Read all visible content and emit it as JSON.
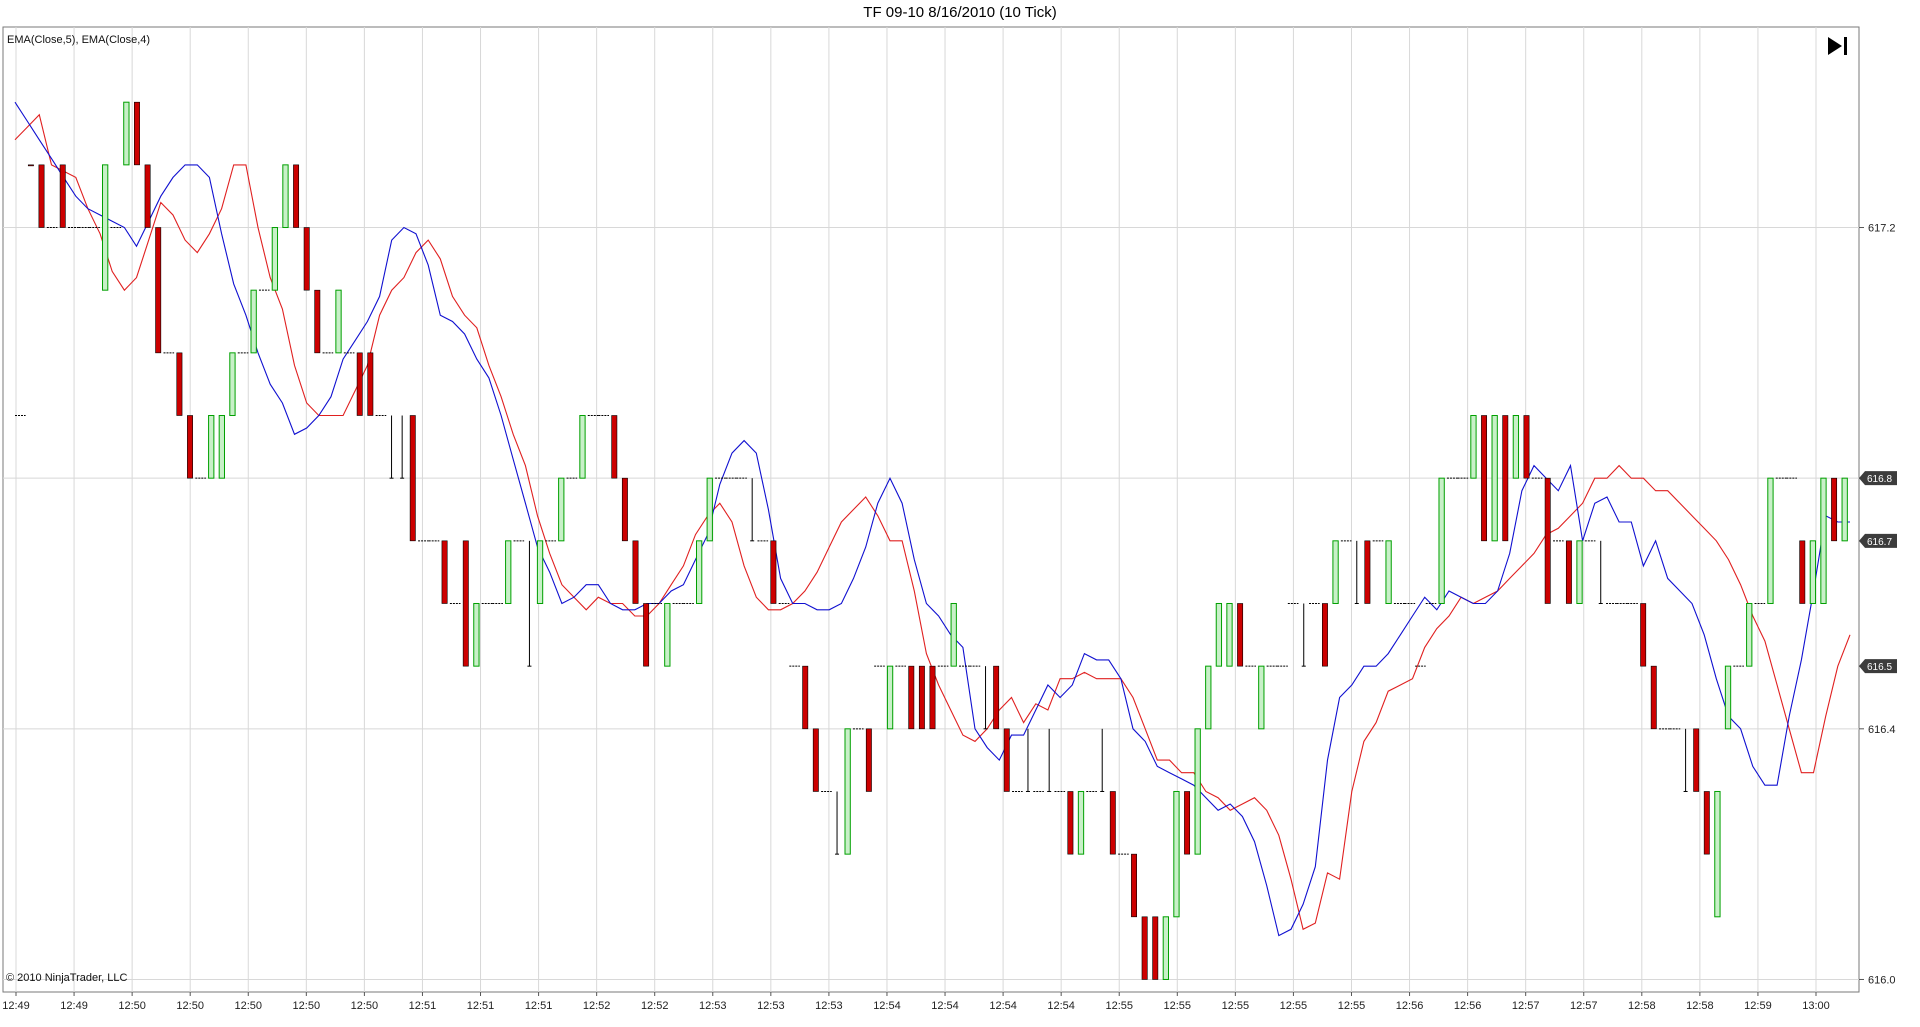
{
  "chart_title": "TF 09-10  8/16/2010 (10 Tick)",
  "indicator_label": "EMA(Close,5), EMA(Close,4)",
  "copyright": "© 2010 NinjaTrader, LLC",
  "colors": {
    "up_bar": "#00a000",
    "up_fill": "#c8f0c8",
    "down_bar": "#cc0000",
    "ema_red": "#e02020",
    "ema_blue": "#1010d0",
    "badge": "#3c3c3c",
    "grid": "#d8d8d8"
  },
  "icons": {
    "jump": "skip-to-end-icon"
  },
  "chart_data": {
    "type": "candlestick",
    "x_labels": [
      "12:49",
      "12:49",
      "12:50",
      "12:50",
      "12:50",
      "12:50",
      "12:50",
      "12:51",
      "12:51",
      "12:51",
      "12:52",
      "12:52",
      "12:53",
      "12:53",
      "12:53",
      "12:54",
      "12:54",
      "12:54",
      "12:54",
      "12:55",
      "12:55",
      "12:55",
      "12:55",
      "12:55",
      "12:56",
      "12:56",
      "12:57",
      "12:57",
      "12:58",
      "12:58",
      "12:59",
      "13:00"
    ],
    "y_ticks": [
      616.0,
      616.4,
      617.2
    ],
    "ylim": [
      615.98,
      617.52
    ],
    "price_badges": [
      616.8,
      616.7,
      616.5
    ],
    "bars": [
      {
        "t": "h",
        "o": 616.9,
        "c": 616.9
      },
      {
        "t": "d",
        "o": 617.3,
        "c": 617.3
      },
      {
        "t": "d",
        "o": 617.3,
        "c": 617.2
      },
      {
        "t": "h",
        "o": 617.2,
        "c": 617.2
      },
      {
        "t": "d",
        "o": 617.3,
        "c": 617.2
      },
      {
        "t": "h",
        "o": 617.2,
        "c": 617.2
      },
      {
        "t": "h",
        "o": 617.2,
        "c": 617.2
      },
      {
        "t": "h",
        "o": 617.2,
        "c": 617.2
      },
      {
        "t": "u",
        "o": 617.1,
        "c": 617.3
      },
      {
        "t": "h",
        "o": 617.2,
        "c": 617.2
      },
      {
        "t": "u",
        "o": 617.3,
        "c": 617.4
      },
      {
        "t": "d",
        "o": 617.4,
        "c": 617.3
      },
      {
        "t": "d",
        "o": 617.3,
        "c": 617.2
      },
      {
        "t": "d",
        "o": 617.2,
        "c": 617.0
      },
      {
        "t": "h",
        "o": 617.0,
        "c": 617.0
      },
      {
        "t": "d",
        "o": 617.0,
        "c": 616.9
      },
      {
        "t": "d",
        "o": 616.9,
        "c": 616.8
      },
      {
        "t": "h",
        "o": 616.8,
        "c": 616.8
      },
      {
        "t": "u",
        "o": 616.8,
        "c": 616.9
      },
      {
        "t": "u",
        "o": 616.8,
        "c": 616.9
      },
      {
        "t": "u",
        "o": 616.9,
        "c": 617.0
      },
      {
        "t": "h",
        "o": 617.0,
        "c": 617.0
      },
      {
        "t": "u",
        "o": 617.0,
        "c": 617.1
      },
      {
        "t": "h",
        "o": 617.1,
        "c": 617.1
      },
      {
        "t": "u",
        "o": 617.1,
        "c": 617.2
      },
      {
        "t": "u",
        "o": 617.2,
        "c": 617.3
      },
      {
        "t": "d",
        "o": 617.3,
        "c": 617.2
      },
      {
        "t": "d",
        "o": 617.2,
        "c": 617.1
      },
      {
        "t": "d",
        "o": 617.1,
        "c": 617.0
      },
      {
        "t": "h",
        "o": 617.0,
        "c": 617.0
      },
      {
        "t": "u",
        "o": 617.0,
        "c": 617.1
      },
      {
        "t": "h",
        "o": 617.0,
        "c": 617.0
      },
      {
        "t": "d",
        "o": 617.0,
        "c": 616.9
      },
      {
        "t": "d",
        "o": 617.0,
        "c": 616.9
      },
      {
        "t": "h",
        "o": 616.9,
        "c": 616.9
      },
      {
        "t": "h",
        "o": 616.9,
        "c": 616.8
      },
      {
        "t": "h",
        "o": 616.9,
        "c": 616.8
      },
      {
        "t": "d",
        "o": 616.9,
        "c": 616.7
      },
      {
        "t": "h",
        "o": 616.7,
        "c": 616.7
      },
      {
        "t": "h",
        "o": 616.7,
        "c": 616.7
      },
      {
        "t": "d",
        "o": 616.7,
        "c": 616.6
      },
      {
        "t": "h",
        "o": 616.6,
        "c": 616.6
      },
      {
        "t": "d",
        "o": 616.7,
        "c": 616.5
      },
      {
        "t": "u",
        "o": 616.5,
        "c": 616.6
      },
      {
        "t": "h",
        "o": 616.6,
        "c": 616.6
      },
      {
        "t": "h",
        "o": 616.6,
        "c": 616.6
      },
      {
        "t": "u",
        "o": 616.6,
        "c": 616.7
      },
      {
        "t": "h",
        "o": 616.7,
        "c": 616.7
      },
      {
        "t": "h",
        "o": 616.7,
        "c": 616.5
      },
      {
        "t": "u",
        "o": 616.6,
        "c": 616.7
      },
      {
        "t": "h",
        "o": 616.7,
        "c": 616.7
      },
      {
        "t": "u",
        "o": 616.7,
        "c": 616.8
      },
      {
        "t": "h",
        "o": 616.8,
        "c": 616.8
      },
      {
        "t": "u",
        "o": 616.8,
        "c": 616.9
      },
      {
        "t": "h",
        "o": 616.9,
        "c": 616.9
      },
      {
        "t": "h",
        "o": 616.9,
        "c": 616.9
      },
      {
        "t": "d",
        "o": 616.9,
        "c": 616.8
      },
      {
        "t": "d",
        "o": 616.8,
        "c": 616.7
      },
      {
        "t": "d",
        "o": 616.7,
        "c": 616.6
      },
      {
        "t": "d",
        "o": 616.6,
        "c": 616.5
      },
      {
        "t": "h",
        "o": 616.6,
        "c": 616.6
      },
      {
        "t": "u",
        "o": 616.5,
        "c": 616.6
      },
      {
        "t": "h",
        "o": 616.6,
        "c": 616.6
      },
      {
        "t": "h",
        "o": 616.6,
        "c": 616.6
      },
      {
        "t": "u",
        "o": 616.6,
        "c": 616.7
      },
      {
        "t": "u",
        "o": 616.7,
        "c": 616.8
      },
      {
        "t": "h",
        "o": 616.8,
        "c": 616.8
      },
      {
        "t": "h",
        "o": 616.8,
        "c": 616.8
      },
      {
        "t": "h",
        "o": 616.8,
        "c": 616.8
      },
      {
        "t": "h",
        "o": 616.8,
        "c": 616.7
      },
      {
        "t": "h",
        "o": 616.7,
        "c": 616.7
      },
      {
        "t": "d",
        "o": 616.7,
        "c": 616.6
      },
      {
        "t": "h",
        "o": 616.6,
        "c": 616.6
      },
      {
        "t": "h",
        "o": 616.5,
        "c": 616.5
      },
      {
        "t": "d",
        "o": 616.5,
        "c": 616.4
      },
      {
        "t": "d",
        "o": 616.4,
        "c": 616.3
      },
      {
        "t": "h",
        "o": 616.3,
        "c": 616.3
      },
      {
        "t": "h",
        "o": 616.3,
        "c": 616.2
      },
      {
        "t": "u",
        "o": 616.2,
        "c": 616.4
      },
      {
        "t": "h",
        "o": 616.4,
        "c": 616.4
      },
      {
        "t": "d",
        "o": 616.4,
        "c": 616.3
      },
      {
        "t": "h",
        "o": 616.5,
        "c": 616.5
      },
      {
        "t": "u",
        "o": 616.4,
        "c": 616.5
      },
      {
        "t": "h",
        "o": 616.5,
        "c": 616.5
      },
      {
        "t": "d",
        "o": 616.5,
        "c": 616.4
      },
      {
        "t": "d",
        "o": 616.5,
        "c": 616.4
      },
      {
        "t": "d",
        "o": 616.5,
        "c": 616.4
      },
      {
        "t": "h",
        "o": 616.5,
        "c": 616.5
      },
      {
        "t": "u",
        "o": 616.5,
        "c": 616.6
      },
      {
        "t": "h",
        "o": 616.5,
        "c": 616.5
      },
      {
        "t": "h",
        "o": 616.5,
        "c": 616.5
      },
      {
        "t": "h",
        "o": 616.5,
        "c": 616.4
      },
      {
        "t": "d",
        "o": 616.5,
        "c": 616.4
      },
      {
        "t": "d",
        "o": 616.4,
        "c": 616.3
      },
      {
        "t": "h",
        "o": 616.3,
        "c": 616.3
      },
      {
        "t": "h",
        "o": 616.4,
        "c": 616.3
      },
      {
        "t": "h",
        "o": 616.3,
        "c": 616.3
      },
      {
        "t": "h",
        "o": 616.4,
        "c": 616.3
      },
      {
        "t": "h",
        "o": 616.3,
        "c": 616.3
      },
      {
        "t": "d",
        "o": 616.3,
        "c": 616.2
      },
      {
        "t": "u",
        "o": 616.2,
        "c": 616.3
      },
      {
        "t": "h",
        "o": 616.3,
        "c": 616.3
      },
      {
        "t": "h",
        "o": 616.4,
        "c": 616.3
      },
      {
        "t": "d",
        "o": 616.3,
        "c": 616.2
      },
      {
        "t": "h",
        "o": 616.2,
        "c": 616.2
      },
      {
        "t": "d",
        "o": 616.2,
        "c": 616.1
      },
      {
        "t": "d",
        "o": 616.1,
        "c": 616.0
      },
      {
        "t": "d",
        "o": 616.1,
        "c": 616.0
      },
      {
        "t": "u",
        "o": 616.0,
        "c": 616.1
      },
      {
        "t": "u",
        "o": 616.1,
        "c": 616.3
      },
      {
        "t": "d",
        "o": 616.3,
        "c": 616.2
      },
      {
        "t": "u",
        "o": 616.2,
        "c": 616.4
      },
      {
        "t": "u",
        "o": 616.4,
        "c": 616.5
      },
      {
        "t": "u",
        "o": 616.5,
        "c": 616.6
      },
      {
        "t": "u",
        "o": 616.5,
        "c": 616.6
      },
      {
        "t": "d",
        "o": 616.6,
        "c": 616.5
      },
      {
        "t": "h",
        "o": 616.5,
        "c": 616.5
      },
      {
        "t": "u",
        "o": 616.4,
        "c": 616.5
      },
      {
        "t": "h",
        "o": 616.5,
        "c": 616.5
      },
      {
        "t": "h",
        "o": 616.5,
        "c": 616.5
      },
      {
        "t": "h",
        "o": 616.6,
        "c": 616.6
      },
      {
        "t": "h",
        "o": 616.6,
        "c": 616.5
      },
      {
        "t": "h",
        "o": 616.6,
        "c": 616.6
      },
      {
        "t": "d",
        "o": 616.6,
        "c": 616.5
      },
      {
        "t": "u",
        "o": 616.6,
        "c": 616.7
      },
      {
        "t": "h",
        "o": 616.7,
        "c": 616.7
      },
      {
        "t": "h",
        "o": 616.7,
        "c": 616.6
      },
      {
        "t": "d",
        "o": 616.7,
        "c": 616.6
      },
      {
        "t": "h",
        "o": 616.7,
        "c": 616.7
      },
      {
        "t": "u",
        "o": 616.6,
        "c": 616.7
      },
      {
        "t": "h",
        "o": 616.6,
        "c": 616.6
      },
      {
        "t": "h",
        "o": 616.6,
        "c": 616.6
      },
      {
        "t": "h",
        "o": 616.5,
        "c": 616.5
      },
      {
        "t": "h",
        "o": 616.6,
        "c": 616.6
      },
      {
        "t": "u",
        "o": 616.6,
        "c": 616.8
      },
      {
        "t": "h",
        "o": 616.8,
        "c": 616.8
      },
      {
        "t": "h",
        "o": 616.8,
        "c": 616.8
      },
      {
        "t": "u",
        "o": 616.8,
        "c": 616.9
      },
      {
        "t": "d",
        "o": 616.9,
        "c": 616.7
      },
      {
        "t": "u",
        "o": 616.7,
        "c": 616.9
      },
      {
        "t": "d",
        "o": 616.9,
        "c": 616.7
      },
      {
        "t": "u",
        "o": 616.8,
        "c": 616.9
      },
      {
        "t": "d",
        "o": 616.9,
        "c": 616.8
      },
      {
        "t": "h",
        "o": 616.8,
        "c": 616.8
      },
      {
        "t": "d",
        "o": 616.8,
        "c": 616.6
      },
      {
        "t": "h",
        "o": 616.7,
        "c": 616.7
      },
      {
        "t": "d",
        "o": 616.7,
        "c": 616.6
      },
      {
        "t": "u",
        "o": 616.6,
        "c": 616.7
      },
      {
        "t": "h",
        "o": 616.7,
        "c": 616.7
      },
      {
        "t": "h",
        "o": 616.7,
        "c": 616.6
      },
      {
        "t": "h",
        "o": 616.6,
        "c": 616.6
      },
      {
        "t": "h",
        "o": 616.6,
        "c": 616.6
      },
      {
        "t": "h",
        "o": 616.6,
        "c": 616.6
      },
      {
        "t": "d",
        "o": 616.6,
        "c": 616.5
      },
      {
        "t": "d",
        "o": 616.5,
        "c": 616.4
      },
      {
        "t": "h",
        "o": 616.4,
        "c": 616.4
      },
      {
        "t": "h",
        "o": 616.4,
        "c": 616.4
      },
      {
        "t": "h",
        "o": 616.4,
        "c": 616.3
      },
      {
        "t": "d",
        "o": 616.4,
        "c": 616.3
      },
      {
        "t": "d",
        "o": 616.3,
        "c": 616.2
      },
      {
        "t": "u",
        "o": 616.1,
        "c": 616.3
      },
      {
        "t": "u",
        "o": 616.4,
        "c": 616.5
      },
      {
        "t": "h",
        "o": 616.5,
        "c": 616.5
      },
      {
        "t": "u",
        "o": 616.5,
        "c": 616.6
      },
      {
        "t": "h",
        "o": 616.6,
        "c": 616.6
      },
      {
        "t": "u",
        "o": 616.6,
        "c": 616.8
      },
      {
        "t": "h",
        "o": 616.8,
        "c": 616.8
      },
      {
        "t": "h",
        "o": 616.8,
        "c": 616.8
      },
      {
        "t": "d",
        "o": 616.7,
        "c": 616.6
      },
      {
        "t": "u",
        "o": 616.6,
        "c": 616.7
      },
      {
        "t": "u",
        "o": 616.6,
        "c": 616.8
      },
      {
        "t": "d",
        "o": 616.8,
        "c": 616.7
      },
      {
        "t": "u",
        "o": 616.7,
        "c": 616.8
      }
    ],
    "ema_red": [
      617.34,
      617.36,
      617.38,
      617.3,
      617.29,
      617.28,
      617.23,
      617.19,
      617.13,
      617.1,
      617.12,
      617.18,
      617.24,
      617.22,
      617.18,
      617.16,
      617.19,
      617.23,
      617.3,
      617.3,
      617.2,
      617.12,
      617.07,
      616.98,
      616.92,
      616.9,
      616.9,
      616.9,
      616.94,
      616.98,
      617.06,
      617.1,
      617.12,
      617.16,
      617.18,
      617.15,
      617.09,
      617.06,
      617.04,
      616.98,
      616.93,
      616.87,
      616.82,
      616.74,
      616.68,
      616.63,
      616.61,
      616.59,
      616.61,
      616.6,
      616.6,
      616.58,
      616.58,
      616.6,
      616.63,
      616.66,
      616.71,
      616.74,
      616.76,
      616.73,
      616.66,
      616.61,
      616.59,
      616.59,
      616.6,
      616.62,
      616.65,
      616.69,
      616.73,
      616.75,
      616.77,
      616.74,
      616.7,
      616.7,
      616.62,
      616.52,
      616.47,
      616.43,
      616.39,
      616.38,
      616.4,
      616.43,
      616.45,
      616.41,
      616.44,
      616.43,
      616.48,
      616.48,
      616.49,
      616.48,
      616.48,
      616.48,
      616.45,
      616.4,
      616.35,
      616.35,
      616.33,
      616.33,
      616.3,
      616.29,
      616.27,
      616.28,
      616.29,
      616.27,
      616.23,
      616.16,
      616.08,
      616.09,
      616.17,
      616.16,
      616.3,
      616.38,
      616.41,
      616.46,
      616.47,
      616.48,
      616.53,
      616.56,
      616.58,
      616.61,
      616.6,
      616.61,
      616.62,
      616.64,
      616.66,
      616.68,
      616.71,
      616.72,
      616.74,
      616.76,
      616.8,
      616.8,
      616.82,
      616.8,
      616.8,
      616.78,
      616.78,
      616.76,
      616.74,
      616.72,
      616.7,
      616.67,
      616.63,
      616.58,
      616.54,
      616.47,
      616.4,
      616.33,
      616.33,
      616.42,
      616.5,
      616.55
    ],
    "ema_blue": [
      617.4,
      617.37,
      617.34,
      617.31,
      617.28,
      617.25,
      617.23,
      617.22,
      617.21,
      617.2,
      617.17,
      617.21,
      617.25,
      617.28,
      617.3,
      617.3,
      617.28,
      617.19,
      617.11,
      617.06,
      617.0,
      616.95,
      616.92,
      616.87,
      616.88,
      616.9,
      616.93,
      616.99,
      617.02,
      617.05,
      617.09,
      617.18,
      617.2,
      617.19,
      617.14,
      617.06,
      617.05,
      617.03,
      616.99,
      616.96,
      616.9,
      616.83,
      616.76,
      616.69,
      616.65,
      616.6,
      616.61,
      616.63,
      616.63,
      616.6,
      616.59,
      616.59,
      616.6,
      616.6,
      616.62,
      616.63,
      616.67,
      616.71,
      616.79,
      616.84,
      616.86,
      616.84,
      616.75,
      616.64,
      616.6,
      616.6,
      616.59,
      616.59,
      616.6,
      616.64,
      616.69,
      616.76,
      616.8,
      616.76,
      616.67,
      616.6,
      616.58,
      616.55,
      616.53,
      616.4,
      616.37,
      616.35,
      616.39,
      616.39,
      616.43,
      616.47,
      616.45,
      616.47,
      616.52,
      616.51,
      616.51,
      616.48,
      616.4,
      616.38,
      616.34,
      616.33,
      616.32,
      616.31,
      616.29,
      616.27,
      616.28,
      616.26,
      616.22,
      616.15,
      616.07,
      616.08,
      616.12,
      616.18,
      616.35,
      616.45,
      616.47,
      616.5,
      616.5,
      616.52,
      616.55,
      616.58,
      616.61,
      616.59,
      616.62,
      616.61,
      616.6,
      616.6,
      616.62,
      616.68,
      616.78,
      616.82,
      616.8,
      616.78,
      616.82,
      616.7,
      616.76,
      616.77,
      616.73,
      616.73,
      616.66,
      616.7,
      616.64,
      616.62,
      616.6,
      616.55,
      616.48,
      616.42,
      616.4,
      616.34,
      616.31,
      616.31,
      616.42,
      616.51,
      616.62,
      616.74,
      616.73,
      616.73
    ]
  }
}
